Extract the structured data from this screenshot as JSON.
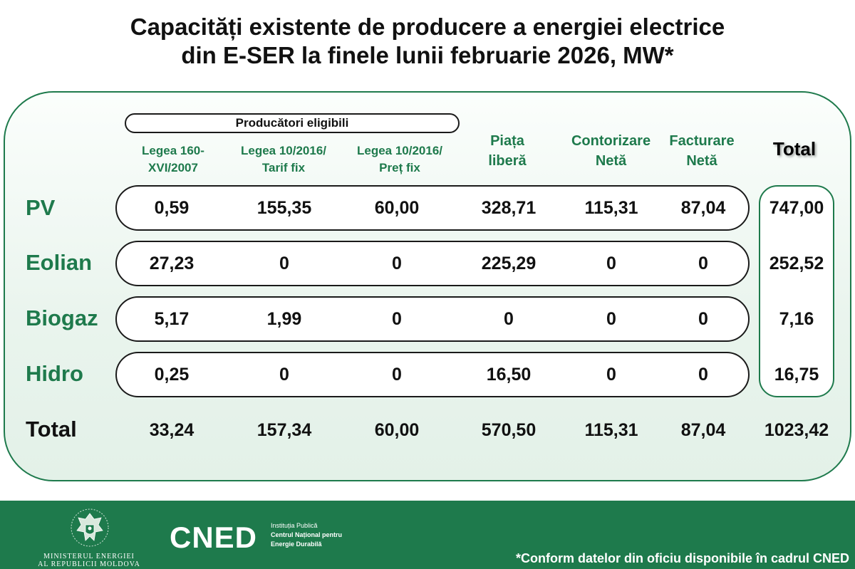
{
  "title": {
    "line1": "Capacități existente de producere a energiei electrice",
    "line2": "din E-SER la finele lunii februarie 2026, MW*"
  },
  "group_label": "Producători eligibili",
  "columns": [
    {
      "line1": "Legea 160-",
      "line2": "XVI/2007"
    },
    {
      "line1": "Legea 10/2016/",
      "line2": "Tarif fix"
    },
    {
      "line1": "Legea 10/2016/",
      "line2": "Preț fix"
    },
    {
      "line1": "Piața",
      "line2": "liberă"
    },
    {
      "line1": "Contorizare",
      "line2": "Netă"
    },
    {
      "line1": "Facturare",
      "line2": "Netă"
    }
  ],
  "total_header": "Total",
  "rows": [
    {
      "label": "PV",
      "values": [
        "0,59",
        "155,35",
        "60,00",
        "328,71",
        "115,31",
        "87,04"
      ],
      "total": "747,00"
    },
    {
      "label": "Eolian",
      "values": [
        "27,23",
        "0",
        "0",
        "225,29",
        "0",
        "0"
      ],
      "total": "252,52"
    },
    {
      "label": "Biogaz",
      "values": [
        "5,17",
        "1,99",
        "0",
        "0",
        "0",
        "0"
      ],
      "total": "7,16"
    },
    {
      "label": "Hidro",
      "values": [
        "0,25",
        "0",
        "0",
        "16,50",
        "0",
        "0"
      ],
      "total": "16,75"
    }
  ],
  "totals_row": {
    "label": "Total",
    "values": [
      "33,24",
      "157,34",
      "60,00",
      "570,50",
      "115,31",
      "87,04"
    ],
    "total": "1023,42"
  },
  "footer": {
    "ministry_line1": "MINISTERUL ENERGIEI",
    "ministry_line2": "AL REPUBLICII MOLDOVA",
    "logo_text": "CNED",
    "inst_line1": "Instituția Publică",
    "inst_line2": "Centrul Național pentru",
    "inst_line3": "Energie Durabilă",
    "footnote": "*Conform datelor din oficiu disponibile în cadrul CNED"
  },
  "colors": {
    "accent_green": "#1e7a4c",
    "text_dark": "#111111"
  }
}
